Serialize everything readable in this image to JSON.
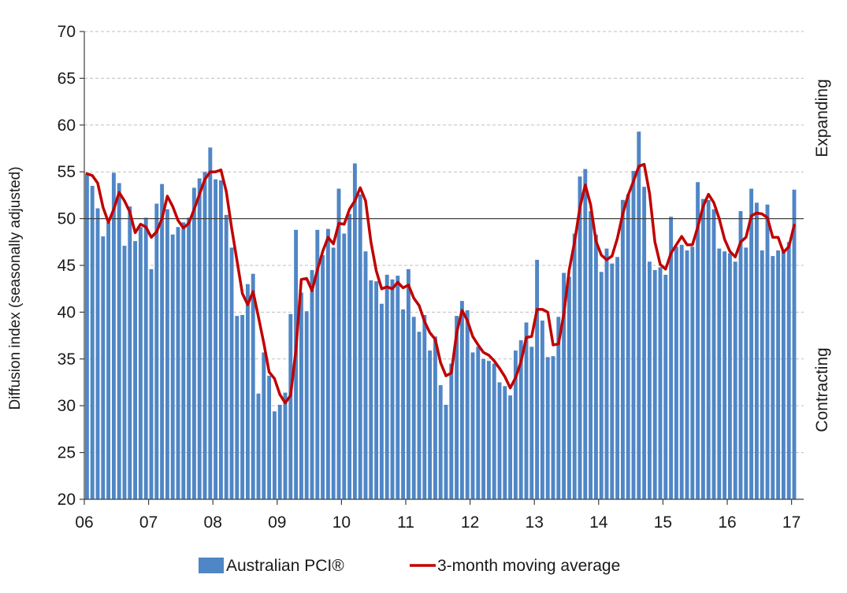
{
  "chart_data": {
    "type": "bar+line",
    "title": "",
    "ylabel": "Diffusion index (seasonally adjusted)",
    "xlabel": "",
    "ylim": [
      20,
      70
    ],
    "yticks": [
      20,
      25,
      30,
      35,
      40,
      45,
      50,
      55,
      60,
      65,
      70
    ],
    "reference_line": 50,
    "grid": "horizontal dashed",
    "x_tick_labels": [
      "06",
      "07",
      "08",
      "09",
      "10",
      "11",
      "12",
      "13",
      "14",
      "15",
      "16",
      "17"
    ],
    "start": "2006-01",
    "end": "2017-02",
    "region_labels": {
      "upper": "Expanding",
      "lower": "Contracting"
    },
    "colors": {
      "bars": "#4f86c6",
      "line": "#c00000",
      "grid": "#bfbfbf",
      "axis": "#404040",
      "ref": "#404040"
    },
    "series": [
      {
        "name": "Australian PCI®",
        "type": "bar",
        "values": [
          54.8,
          53.5,
          51.1,
          48.1,
          49.6,
          54.9,
          53.8,
          47.1,
          51.3,
          47.6,
          49.1,
          50.1,
          44.6,
          51.6,
          53.7,
          51.0,
          48.3,
          49.1,
          49.6,
          50.1,
          53.3,
          54.3,
          55.0,
          57.6,
          54.2,
          54.1,
          50.4,
          46.9,
          39.6,
          39.7,
          43.0,
          44.1,
          31.3,
          35.7,
          33.2,
          29.4,
          30.1,
          31.4,
          39.8,
          48.8,
          42.1,
          40.1,
          44.5,
          48.8,
          46.1,
          48.9,
          46.9,
          53.2,
          48.4,
          50.5,
          55.9,
          52.6,
          46.5,
          43.4,
          43.3,
          40.9,
          44.0,
          43.5,
          43.9,
          40.3,
          44.6,
          39.5,
          37.9,
          39.7,
          35.9,
          37.4,
          32.2,
          30.1,
          34.5,
          39.6,
          41.2,
          40.2,
          35.7,
          36.3,
          35.0,
          34.8,
          34.5,
          32.5,
          32.1,
          31.1,
          35.9,
          37.0,
          38.9,
          36.3,
          45.6,
          39.1,
          35.2,
          35.3,
          39.5,
          44.2,
          43.8,
          48.4,
          54.5,
          55.3,
          50.8,
          48.3,
          44.3,
          46.8,
          45.2,
          45.9,
          52.0,
          52.6,
          55.1,
          59.3,
          53.4,
          45.4,
          44.5,
          44.8,
          44.0,
          50.2,
          47.0,
          47.2,
          46.6,
          47.0,
          53.9,
          52.1,
          52.0,
          51.0,
          46.8,
          46.5,
          46.3,
          45.4,
          50.8,
          46.9,
          53.2,
          51.7,
          46.6,
          51.5,
          46.0,
          46.6,
          46.7,
          47.5,
          53.1
        ]
      },
      {
        "name": "3-month moving average",
        "type": "line",
        "values": [
          54.8,
          54.6,
          53.8,
          51.2,
          49.6,
          51.0,
          52.8,
          51.9,
          50.7,
          48.5,
          49.4,
          49.1,
          48.0,
          48.6,
          50.0,
          52.4,
          51.3,
          49.8,
          49.0,
          49.5,
          51.0,
          52.6,
          54.2,
          55.0,
          55.0,
          55.2,
          52.9,
          49.0,
          45.5,
          42.0,
          40.8,
          42.2,
          39.5,
          36.7,
          33.6,
          32.9,
          31.2,
          30.3,
          31.1,
          36.0,
          43.5,
          43.6,
          42.3,
          44.5,
          46.5,
          48.0,
          47.3,
          49.5,
          49.4,
          51.0,
          51.9,
          53.3,
          51.9,
          47.5,
          44.4,
          42.5,
          42.7,
          42.5,
          43.2,
          42.6,
          42.9,
          41.5,
          40.7,
          39.0,
          37.8,
          37.1,
          34.6,
          33.2,
          33.5,
          37.8,
          40.2,
          39.1,
          37.4,
          36.5,
          35.7,
          35.4,
          34.8,
          34.0,
          33.1,
          31.9,
          33.0,
          34.7,
          37.3,
          37.4,
          40.3,
          40.3,
          40.0,
          36.5,
          36.6,
          39.8,
          44.5,
          47.5,
          51.2,
          53.6,
          51.5,
          47.6,
          46.1,
          45.6,
          46.0,
          47.9,
          50.5,
          52.5,
          54.0,
          55.6,
          55.8,
          52.7,
          47.5,
          45.1,
          44.6,
          46.3,
          47.2,
          48.1,
          47.2,
          47.2,
          49.1,
          51.3,
          52.6,
          51.7,
          50.0,
          47.8,
          46.5,
          45.9,
          47.5,
          48.0,
          50.3,
          50.6,
          50.5,
          50.1,
          48.0,
          48.0,
          46.4,
          47.0,
          49.3
        ]
      }
    ]
  },
  "legend": {
    "bar_label": "Australian PCI®",
    "line_label": "3-month moving average"
  }
}
